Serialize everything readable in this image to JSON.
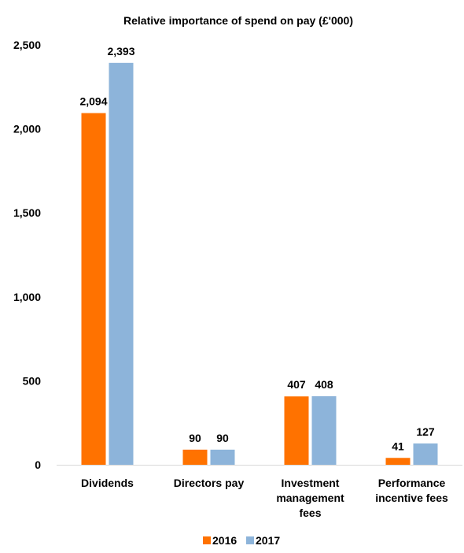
{
  "chart_data": {
    "type": "bar",
    "title": "Relative importance of spend on pay (£'000)",
    "categories": [
      [
        "Dividends"
      ],
      [
        "Directors pay"
      ],
      [
        "Investment",
        "management",
        "fees"
      ],
      [
        "Performance",
        "incentive fees"
      ]
    ],
    "series": [
      {
        "name": "2016",
        "color": "#FF7200",
        "values": [
          2094,
          90,
          407,
          41
        ],
        "labels": [
          "2,094",
          "90",
          "407",
          "41"
        ]
      },
      {
        "name": "2017",
        "color": "#8DB4DA",
        "values": [
          2393,
          90,
          408,
          127
        ],
        "labels": [
          "2,393",
          "90",
          "408",
          "127"
        ]
      }
    ],
    "y_ticks": [
      0,
      500,
      1000,
      1500,
      2000,
      2500
    ],
    "y_tick_labels": [
      "0",
      "500",
      "1,000",
      "1,500",
      "2,000",
      "2,500"
    ],
    "ylim": [
      0,
      2500
    ],
    "grid": false,
    "legend_position": "bottom",
    "xlabel": "",
    "ylabel": ""
  }
}
